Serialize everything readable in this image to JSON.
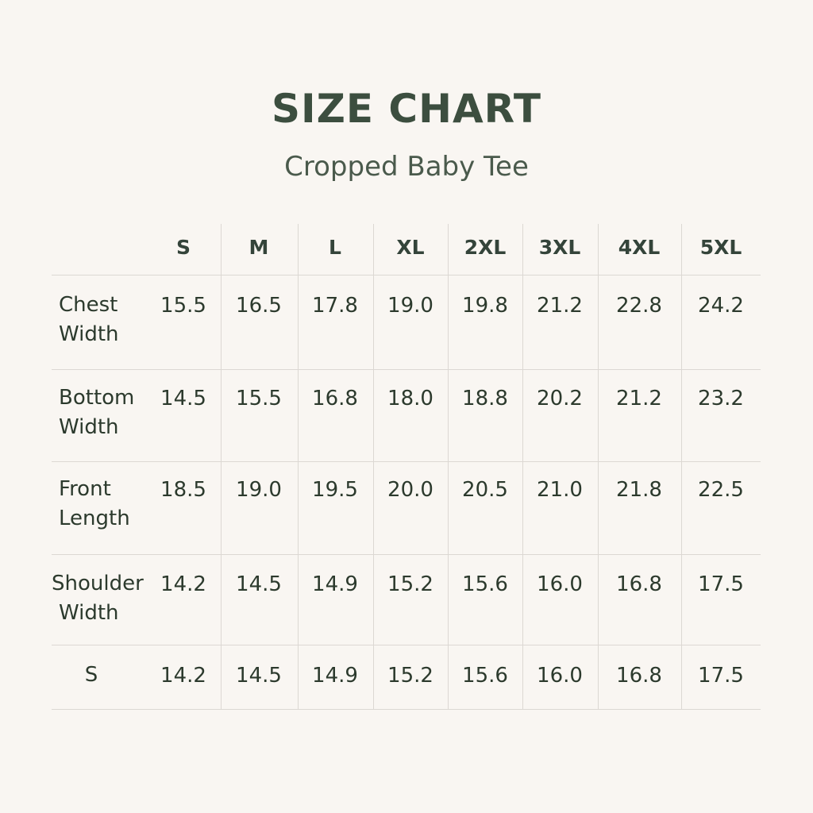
{
  "header": {
    "title": "SIZE CHART",
    "subtitle": "Cropped Baby Tee"
  },
  "colors": {
    "background": "#f9f6f2",
    "text": "#2c3a2d",
    "title": "#3c4e3f",
    "grid": "#dcd8d3"
  },
  "table": {
    "columns": [
      "S",
      "M",
      "L",
      "XL",
      "2XL",
      "3XL",
      "4XL",
      "5XL"
    ],
    "rows": [
      {
        "label": [
          "Chest",
          "Width"
        ],
        "values": [
          "15.5",
          "16.5",
          "17.8",
          "19.0",
          "19.8",
          "21.2",
          "22.8",
          "24.2"
        ]
      },
      {
        "label": [
          "Bottom",
          "Width"
        ],
        "values": [
          "14.5",
          "15.5",
          "16.8",
          "18.0",
          "18.8",
          "20.2",
          "21.2",
          "23.2"
        ]
      },
      {
        "label": [
          "Front",
          "Length"
        ],
        "values": [
          "18.5",
          "19.0",
          "19.5",
          "20.0",
          "20.5",
          "21.0",
          "21.8",
          "22.5"
        ]
      },
      {
        "label": [
          "Shoulder",
          "Width"
        ],
        "values": [
          "14.2",
          "14.5",
          "14.9",
          "15.2",
          "15.6",
          "16.0",
          "16.8",
          "17.5"
        ]
      },
      {
        "label": [
          "S"
        ],
        "values": [
          "14.2",
          "14.5",
          "14.9",
          "15.2",
          "15.6",
          "16.0",
          "16.8",
          "17.5"
        ]
      }
    ]
  }
}
